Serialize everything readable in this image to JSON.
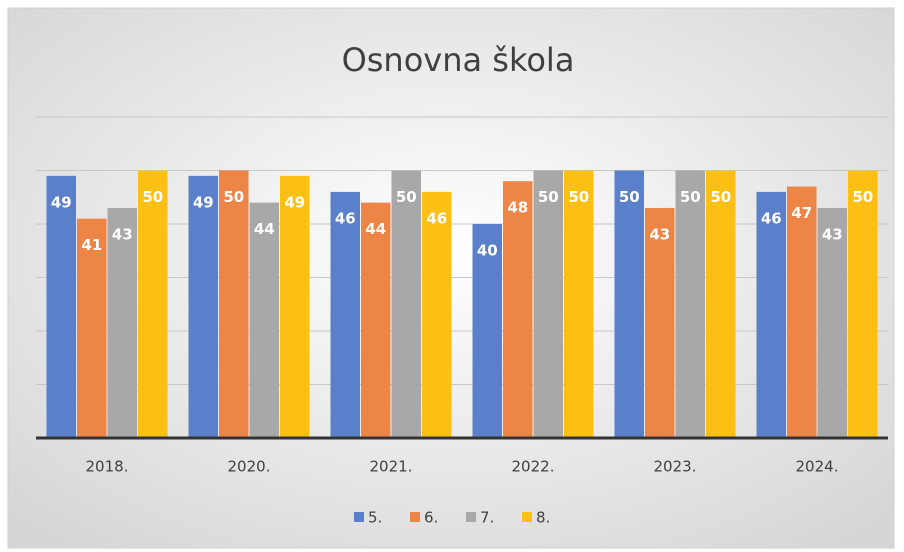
{
  "chart_data": {
    "type": "bar",
    "title": "Osnovna škola",
    "categories": [
      "2018.",
      "2020.",
      "2021.",
      "2022.",
      "2023.",
      "2024."
    ],
    "series": [
      {
        "name": "5.",
        "color": "#5b80cb",
        "values": [
          49,
          49,
          46,
          40,
          50,
          46
        ]
      },
      {
        "name": "6.",
        "color": "#ec8545",
        "values": [
          41,
          50,
          44,
          48,
          43,
          47
        ]
      },
      {
        "name": "7.",
        "color": "#a8a8a8",
        "values": [
          43,
          44,
          50,
          50,
          50,
          43
        ]
      },
      {
        "name": "8.",
        "color": "#fbc013",
        "values": [
          50,
          49,
          46,
          50,
          50,
          50
        ]
      }
    ],
    "ylim": [
      0,
      60
    ],
    "yticks": [
      0,
      10,
      20,
      30,
      40,
      50,
      60
    ],
    "grid": true,
    "legend": "bottom"
  }
}
